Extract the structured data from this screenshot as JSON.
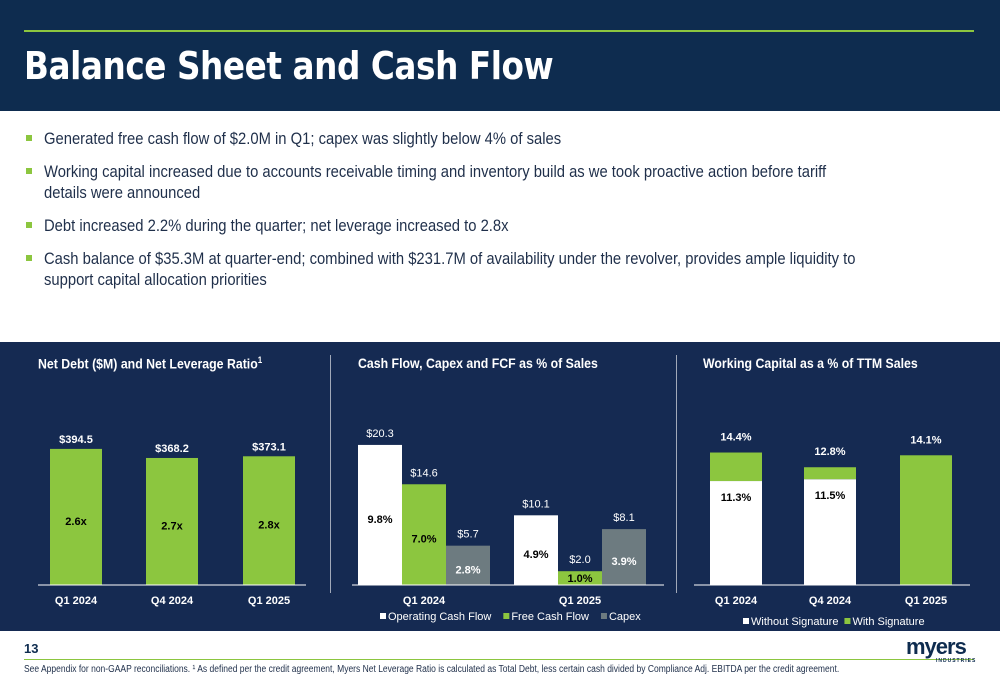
{
  "header": {
    "title": "Balance Sheet and Cash Flow"
  },
  "bullets": [
    "Generated free cash flow of $2.0M in Q1; capex was slightly below 4% of sales",
    "Working capital increased due to accounts receivable timing and inventory build as we took proactive action before tariff",
    "details were announced",
    "Debt increased 2.2% during the quarter; net leverage increased to 2.8x",
    "Cash balance of $35.3M at quarter-end; combined with $231.7M of availability under the revolver, provides ample liquidity to",
    "support capital allocation priorities"
  ],
  "colors": {
    "navy": "#0e2c4f",
    "panel": "#152a52",
    "green": "#8cc63f",
    "white": "#ffffff",
    "gray": "#6d7b80"
  },
  "chart_data": [
    {
      "type": "bar",
      "title": "Net Debt ($M) and Net Leverage Ratio",
      "title_sup": "1",
      "categories": [
        "Q1 2024",
        "Q4 2024",
        "Q1 2025"
      ],
      "series": [
        {
          "values": [
            394.5,
            368.2,
            373.1
          ]
        }
      ],
      "value_labels": [
        "$394.5",
        "$368.2",
        "$373.1"
      ],
      "inner_labels": [
        "2.6x",
        "2.7x",
        "2.8x"
      ],
      "legend": null
    },
    {
      "type": "bar",
      "title": "Cash Flow, Capex and FCF as % of Sales",
      "categories": [
        "Q1 2024",
        "Q1 2025"
      ],
      "series": [
        {
          "name": "Operating Cash Flow",
          "values": [
            20.3,
            10.1
          ],
          "value_labels": [
            "$20.3",
            "$10.1"
          ],
          "pct_labels": [
            "9.8%",
            "4.9%"
          ]
        },
        {
          "name": "Free Cash Flow",
          "values": [
            14.6,
            2.0
          ],
          "value_labels": [
            "$14.6",
            "$2.0"
          ],
          "pct_labels": [
            "7.0%",
            "1.0%"
          ]
        },
        {
          "name": "Capex",
          "values": [
            5.7,
            8.1
          ],
          "value_labels": [
            "$5.7",
            "$8.1"
          ],
          "pct_labels": [
            "2.8%",
            "3.9%"
          ]
        }
      ],
      "legend": "bottom"
    },
    {
      "type": "bar",
      "stacked": true,
      "title": "Working Capital as a % of TTM Sales",
      "categories": [
        "Q1 2024",
        "Q4 2024",
        "Q1 2025"
      ],
      "series": [
        {
          "name": "Without Signature",
          "values": [
            11.3,
            11.5,
            0
          ],
          "labels": [
            "11.3%",
            "11.5%",
            ""
          ]
        },
        {
          "name": "With Signature",
          "values": [
            3.1,
            1.3,
            14.1
          ],
          "labels": [
            "",
            "",
            ""
          ]
        }
      ],
      "totals": [
        "14.4%",
        "12.8%",
        "14.1%"
      ],
      "legend": "bottom"
    }
  ],
  "footer": {
    "page_number": "13",
    "footnote": "See Appendix for non-GAAP reconciliations. ¹ As defined per the credit agreement,  Myers Net Leverage Ratio is calculated as Total Debt, less certain cash divided by Compliance Adj. EBITDA per the credit agreement.",
    "logo_word": "myers",
    "logo_sub": "INDUSTRIES"
  }
}
